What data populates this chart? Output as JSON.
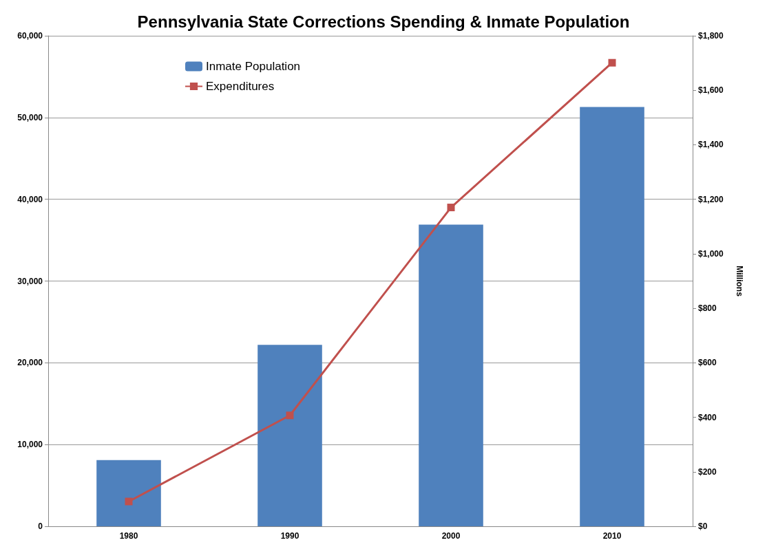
{
  "chart_data": {
    "type": "bar",
    "title": "Pennsylvania State Corrections Spending & Inmate Population",
    "y2label": "Millions",
    "categories": [
      "1980",
      "1990",
      "2000",
      "2010"
    ],
    "series": [
      {
        "name": "Inmate Population",
        "color": "#4f81bd",
        "values": [
          8100,
          22200,
          36900,
          51300
        ]
      },
      {
        "name": "Expenditures",
        "type": "line",
        "axis": "y2",
        "color": "#c0504d",
        "marker": "square",
        "values": [
          91,
          407,
          1170,
          1701
        ]
      }
    ],
    "ylim": [
      0,
      60000
    ],
    "yticks": [
      {
        "value": 0,
        "label": "0"
      },
      {
        "value": 10000,
        "label": "10,000"
      },
      {
        "value": 20000,
        "label": "20,000"
      },
      {
        "value": 30000,
        "label": "30,000"
      },
      {
        "value": 40000,
        "label": "40,000"
      },
      {
        "value": 50000,
        "label": "50,000"
      },
      {
        "value": 60000,
        "label": "60,000"
      }
    ],
    "y2lim": [
      0,
      1800
    ],
    "y2ticks": [
      {
        "value": 0,
        "label": "$0"
      },
      {
        "value": 200,
        "label": "$200"
      },
      {
        "value": 400,
        "label": "$400"
      },
      {
        "value": 600,
        "label": "$600"
      },
      {
        "value": 800,
        "label": "$800"
      },
      {
        "value": 1000,
        "label": "$1,000"
      },
      {
        "value": 1200,
        "label": "$1,200"
      },
      {
        "value": 1400,
        "label": "$1,400"
      },
      {
        "value": 1600,
        "label": "$1,600"
      },
      {
        "value": 1800,
        "label": "$1,800"
      }
    ],
    "grid": "y",
    "legend": "top left"
  }
}
